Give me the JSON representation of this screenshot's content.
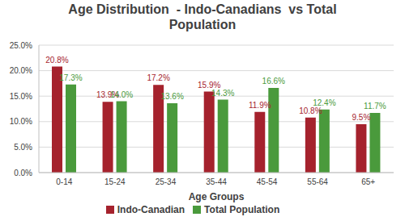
{
  "chart_data": {
    "type": "bar",
    "title": "Age Distribution  - Indo-Canadians  vs Total Population",
    "x_label": "Age Groups",
    "categories": [
      "0-14",
      "15-24",
      "25-34",
      "35-44",
      "45-54",
      "55-64",
      "65+"
    ],
    "series": [
      {
        "name": "Indo-Canadian",
        "color": "#a5222d",
        "values": [
          20.8,
          13.9,
          17.2,
          15.9,
          11.9,
          10.8,
          9.5
        ],
        "value_labels": [
          "20.8%",
          "13.9%",
          "17.2%",
          "15.9%",
          "11.9%",
          "10.8%",
          "9.5%"
        ]
      },
      {
        "name": "Total Population",
        "color": "#4a9a3c",
        "values": [
          17.3,
          14.0,
          13.6,
          14.3,
          16.6,
          12.4,
          11.7
        ],
        "value_labels": [
          "17.3%",
          "14.0%",
          "13.6%",
          "14.3%",
          "16.6%",
          "12.4%",
          "11.7%"
        ]
      }
    ],
    "ylim": [
      0,
      25
    ],
    "yticks": [
      {
        "value": 0,
        "label": "0.0%"
      },
      {
        "value": 5,
        "label": "5.0%"
      },
      {
        "value": 10,
        "label": "10.0%"
      },
      {
        "value": 15,
        "label": "15.0%"
      },
      {
        "value": 20,
        "label": "20.0%"
      },
      {
        "value": 25,
        "label": "25.0%"
      }
    ],
    "grid": true,
    "legend": "bottom",
    "data_labels": true
  }
}
